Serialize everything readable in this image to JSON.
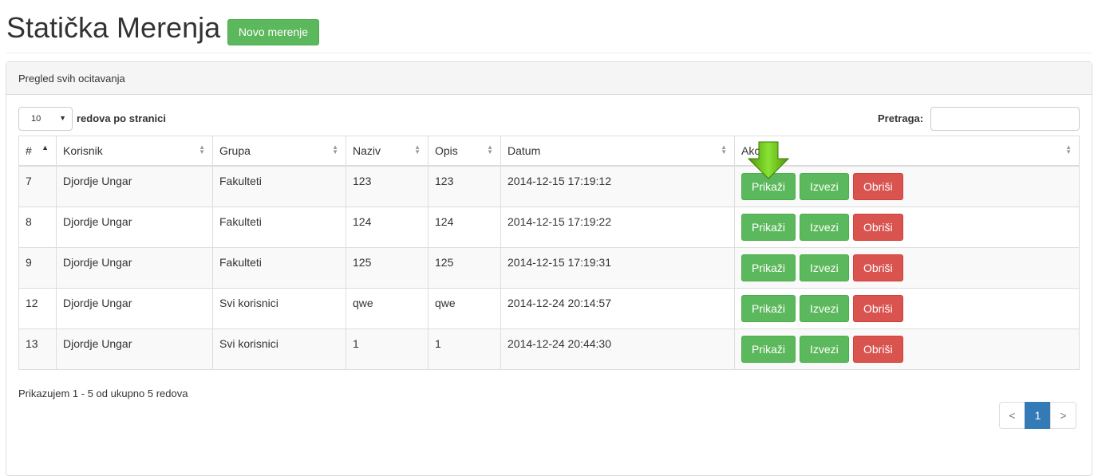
{
  "page": {
    "title": "Statička Merenja",
    "new_button": "Novo merenje"
  },
  "panel": {
    "heading": "Pregled svih ocitavanja"
  },
  "table_controls": {
    "page_length": "10",
    "page_length_label": "redova po stranici",
    "search_label": "Pretraga:",
    "search_value": ""
  },
  "columns": [
    "#",
    "Korisnik",
    "Grupa",
    "Naziv",
    "Opis",
    "Datum",
    "Akcije"
  ],
  "rows": [
    {
      "id": "7",
      "user": "Djordje Ungar",
      "group": "Fakulteti",
      "name": "123",
      "desc": "123",
      "date": "2014-12-15 17:19:12"
    },
    {
      "id": "8",
      "user": "Djordje Ungar",
      "group": "Fakulteti",
      "name": "124",
      "desc": "124",
      "date": "2014-12-15 17:19:22"
    },
    {
      "id": "9",
      "user": "Djordje Ungar",
      "group": "Fakulteti",
      "name": "125",
      "desc": "125",
      "date": "2014-12-15 17:19:31"
    },
    {
      "id": "12",
      "user": "Djordje Ungar",
      "group": "Svi korisnici",
      "name": "qwe",
      "desc": "qwe",
      "date": "2014-12-24 20:14:57"
    },
    {
      "id": "13",
      "user": "Djordje Ungar",
      "group": "Svi korisnici",
      "name": "1",
      "desc": "1",
      "date": "2014-12-24 20:44:30"
    }
  ],
  "actions": {
    "show": "Prikaži",
    "export": "Izvezi",
    "delete": "Obriši"
  },
  "footer": {
    "info": "Prikazujem 1 - 5 od ukupno 5 redova",
    "prev": "<",
    "current_page": "1",
    "next": ">"
  },
  "colors": {
    "success": "#5cb85c",
    "danger": "#d9534f",
    "primary": "#337ab7"
  },
  "icons": {
    "hint": "green-down-arrow-icon"
  }
}
